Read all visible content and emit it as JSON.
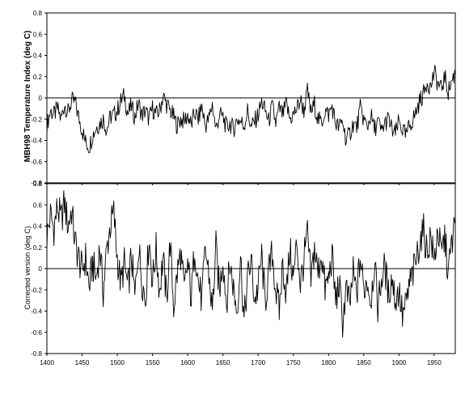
{
  "chart_data": [
    {
      "type": "line",
      "title": "",
      "xlabel": "",
      "ylabel": "MBH98 Temperature Index (deg C)",
      "xlim": [
        1400,
        1980
      ],
      "ylim": [
        -0.8,
        0.8
      ],
      "yticks": [
        "0.8",
        "0.6",
        "0.4",
        "0.2",
        "0",
        "-0.2",
        "-0.4",
        "-0.6",
        "-0.8"
      ],
      "grid": false,
      "legend": "none",
      "color": "#000000",
      "series": [
        {
          "x": [
            1400,
            1405,
            1410,
            1415,
            1420,
            1425,
            1430,
            1435,
            1440,
            1445,
            1450,
            1455,
            1460,
            1465,
            1470,
            1475,
            1480,
            1485,
            1490,
            1495,
            1500,
            1505,
            1510,
            1515,
            1520,
            1525,
            1530,
            1535,
            1540,
            1545,
            1550,
            1555,
            1560,
            1565,
            1570,
            1575,
            1580,
            1585,
            1590,
            1595,
            1600,
            1605,
            1610,
            1615,
            1620,
            1625,
            1630,
            1635,
            1640,
            1645,
            1650,
            1655,
            1660,
            1665,
            1670,
            1675,
            1680,
            1685,
            1690,
            1695,
            1700,
            1705,
            1710,
            1715,
            1720,
            1725,
            1730,
            1735,
            1740,
            1745,
            1750,
            1755,
            1760,
            1765,
            1770,
            1775,
            1780,
            1785,
            1790,
            1795,
            1800,
            1805,
            1810,
            1815,
            1820,
            1825,
            1830,
            1835,
            1840,
            1845,
            1850,
            1855,
            1860,
            1865,
            1870,
            1875,
            1880,
            1885,
            1890,
            1895,
            1900,
            1905,
            1910,
            1915,
            1920,
            1925,
            1930,
            1935,
            1940,
            1945,
            1950,
            1955,
            1960,
            1965,
            1970,
            1975,
            1980
          ],
          "values": [
            -0.26,
            -0.12,
            -0.16,
            -0.1,
            -0.2,
            -0.06,
            -0.14,
            -0.03,
            -0.04,
            -0.18,
            -0.3,
            -0.42,
            -0.46,
            -0.35,
            -0.28,
            -0.24,
            -0.2,
            -0.3,
            -0.18,
            -0.16,
            -0.12,
            -0.03,
            0.02,
            -0.15,
            -0.08,
            -0.18,
            -0.05,
            -0.16,
            -0.12,
            -0.2,
            -0.1,
            -0.16,
            -0.12,
            0.02,
            -0.06,
            -0.12,
            -0.18,
            -0.26,
            -0.2,
            -0.22,
            -0.16,
            -0.26,
            -0.14,
            -0.2,
            -0.08,
            -0.26,
            -0.2,
            -0.06,
            -0.3,
            -0.16,
            -0.18,
            -0.28,
            -0.24,
            -0.3,
            -0.2,
            -0.22,
            -0.26,
            -0.12,
            -0.28,
            -0.22,
            -0.16,
            -0.04,
            -0.12,
            -0.22,
            -0.08,
            -0.24,
            -0.1,
            -0.16,
            -0.06,
            -0.2,
            -0.16,
            -0.1,
            -0.02,
            -0.12,
            0.06,
            -0.14,
            -0.06,
            -0.2,
            -0.24,
            -0.12,
            -0.16,
            -0.08,
            -0.24,
            -0.28,
            -0.22,
            -0.4,
            -0.34,
            -0.24,
            -0.28,
            -0.1,
            -0.2,
            -0.28,
            -0.16,
            -0.3,
            -0.22,
            -0.32,
            -0.24,
            -0.2,
            -0.3,
            -0.34,
            -0.22,
            -0.3,
            -0.36,
            -0.26,
            -0.2,
            -0.12,
            -0.02,
            0.04,
            0.16,
            0.1,
            0.24,
            0.14,
            0.08,
            0.2,
            0.06,
            0.16,
            0.24
          ]
        }
      ]
    },
    {
      "type": "line",
      "title": "",
      "xlabel": "",
      "ylabel": "Corrected version (deg C)",
      "xlim": [
        1400,
        1980
      ],
      "ylim": [
        -0.8,
        0.8
      ],
      "yticks": [
        "0.8",
        "0.6",
        "0.4",
        "0.2",
        "0",
        "-0.2",
        "-0.4",
        "-0.6",
        "-0.8"
      ],
      "xticks": [
        "1400",
        "1450",
        "1500",
        "1550",
        "1600",
        "1650",
        "1700",
        "1750",
        "1800",
        "1850",
        "1900",
        "1950"
      ],
      "grid": false,
      "legend": "none",
      "color": "#000000",
      "series": [
        {
          "x": [
            1400,
            1405,
            1410,
            1415,
            1420,
            1425,
            1430,
            1435,
            1440,
            1445,
            1450,
            1455,
            1460,
            1465,
            1470,
            1475,
            1480,
            1485,
            1490,
            1495,
            1500,
            1505,
            1510,
            1515,
            1520,
            1525,
            1530,
            1535,
            1540,
            1545,
            1550,
            1555,
            1560,
            1565,
            1570,
            1575,
            1580,
            1585,
            1590,
            1595,
            1600,
            1605,
            1610,
            1615,
            1620,
            1625,
            1630,
            1635,
            1640,
            1645,
            1650,
            1655,
            1660,
            1665,
            1670,
            1675,
            1680,
            1685,
            1690,
            1695,
            1700,
            1705,
            1710,
            1715,
            1720,
            1725,
            1730,
            1735,
            1740,
            1745,
            1750,
            1755,
            1760,
            1765,
            1770,
            1775,
            1780,
            1785,
            1790,
            1795,
            1800,
            1805,
            1810,
            1815,
            1820,
            1825,
            1830,
            1835,
            1840,
            1845,
            1850,
            1855,
            1860,
            1865,
            1870,
            1875,
            1880,
            1885,
            1890,
            1895,
            1900,
            1905,
            1910,
            1915,
            1920,
            1925,
            1930,
            1935,
            1940,
            1945,
            1950,
            1955,
            1960,
            1965,
            1970,
            1975,
            1980
          ],
          "values": [
            0.3,
            0.5,
            0.38,
            0.58,
            0.45,
            0.62,
            0.4,
            0.55,
            0.25,
            0.1,
            -0.02,
            0.1,
            -0.18,
            0.05,
            -0.1,
            0.2,
            -0.22,
            0.18,
            0.4,
            0.52,
            0.1,
            -0.15,
            0.05,
            -0.2,
            0.12,
            -0.28,
            0.22,
            -0.1,
            -0.3,
            0.3,
            -0.12,
            0.18,
            -0.2,
            0.1,
            -0.3,
            0.25,
            -0.36,
            -0.05,
            0.15,
            -0.22,
            0.05,
            -0.28,
            0.22,
            -0.12,
            -0.3,
            0.18,
            -0.05,
            -0.4,
            0.2,
            -0.22,
            0.1,
            -0.32,
            0.05,
            -0.18,
            -0.4,
            0.12,
            -0.5,
            -0.1,
            0.08,
            -0.3,
            -0.18,
            0.12,
            -0.32,
            -0.05,
            0.15,
            -0.2,
            -0.4,
            0.05,
            -0.25,
            0.18,
            -0.1,
            0.25,
            -0.15,
            0.08,
            0.32,
            -0.12,
            0.2,
            -0.05,
            0.15,
            -0.2,
            -0.1,
            0.12,
            -0.3,
            -0.15,
            -0.5,
            -0.2,
            -0.35,
            -0.05,
            -0.25,
            0.1,
            -0.2,
            -0.1,
            -0.3,
            0.05,
            -0.35,
            -0.1,
            0.02,
            -0.25,
            -0.08,
            -0.3,
            -0.2,
            -0.45,
            -0.35,
            -0.15,
            -0.05,
            0.1,
            0.28,
            0.35,
            0.15,
            0.32,
            0.05,
            0.38,
            0.12,
            0.3,
            -0.05,
            0.25,
            0.42
          ]
        }
      ]
    }
  ]
}
